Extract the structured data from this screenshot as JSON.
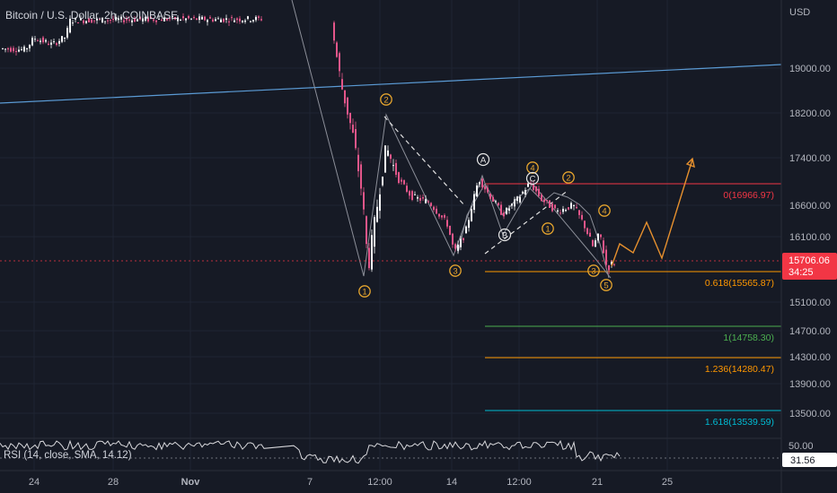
{
  "symbol_title": "Bitcoin / U.S. Dollar, 2h, COINBASE",
  "rsi_title": "RSI (14, close, SMA, 14.12)",
  "chart_data": {
    "type": "candlestick",
    "title": "Bitcoin / U.S. Dollar, 2h, COINBASE",
    "currency": "USD",
    "price_axis": {
      "ticks": [
        19000,
        18200,
        17400,
        16600,
        16100,
        15100,
        14700,
        14300,
        13900,
        13500
      ],
      "tick_labels": [
        "19000.00",
        "18200.00",
        "17400.00",
        "16600.00",
        "16100.00",
        "15100.00",
        "14700.00",
        "14300.00",
        "13900.00",
        "13500.00"
      ],
      "range": [
        13000,
        19900
      ]
    },
    "time_axis": {
      "ticks": [
        "24",
        "28",
        "Nov",
        "7",
        "12:00",
        "14",
        "12:00",
        "21",
        "25"
      ]
    },
    "current_price": {
      "value": 15706.06,
      "label": "15706.06",
      "countdown": "34:25",
      "color": "#f23645"
    },
    "fibonacci": [
      {
        "ratio": "0",
        "value": 16966.97,
        "label": "0(16966.97)",
        "color": "#f23645"
      },
      {
        "ratio": "0.618",
        "value": 15565.87,
        "label": "0.618(15565.87)",
        "color": "#ff9800"
      },
      {
        "ratio": "1",
        "value": 14758.3,
        "label": "1(14758.30)",
        "color": "#4caf50"
      },
      {
        "ratio": "1.236",
        "value": 14280.47,
        "label": "1.236(14280.47)",
        "color": "#ff9800"
      },
      {
        "ratio": "1.618",
        "value": 13539.59,
        "label": "1.618(13539.59)",
        "color": "#00bcd4"
      }
    ],
    "wave_labels": {
      "orange": [
        "2",
        "1",
        "3",
        "4",
        "2",
        "1",
        "4",
        "3",
        "5"
      ],
      "white": [
        "A",
        "C",
        "B"
      ]
    },
    "rsi": {
      "name": "RSI (14, close, SMA, 14.12)",
      "level": 50,
      "level_label": "50.00",
      "value": 31.56,
      "value_label": "31.56"
    }
  },
  "colors": {
    "background": "#161a25",
    "grid": "#1f2432",
    "axis_text": "#b2b5be",
    "candle": "#f9f9fb",
    "wave_line": "#a0a4ad",
    "trendline": "#5b9bd5",
    "projection": "#e6902e",
    "fib_zero": "#f23645",
    "price_tag": "#f23645"
  }
}
